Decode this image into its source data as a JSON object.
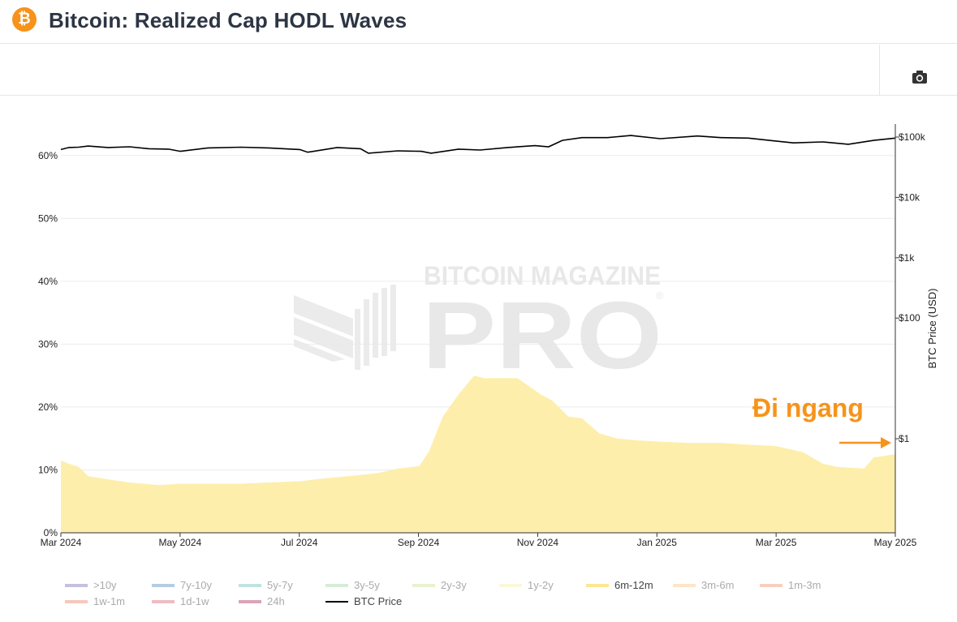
{
  "header": {
    "title": "Bitcoin: Realized Cap HODL Waves",
    "logo_glyph": "₿"
  },
  "toolbar": {
    "camera_icon": "camera-icon"
  },
  "chart_data": {
    "type": "area",
    "title": "Bitcoin: Realized Cap HODL Waves",
    "x_tick_labels": [
      "Mar 2024",
      "May 2024",
      "Jul 2024",
      "Sep 2024",
      "Nov 2024",
      "Jan 2025",
      "Mar 2025",
      "May 2025"
    ],
    "x_range": [
      "2024-03-01",
      "2025-05-01"
    ],
    "y_left": {
      "range": [
        0,
        65
      ],
      "unit": "%",
      "ticks": [
        "0%",
        "10%",
        "20%",
        "30%",
        "40%",
        "50%",
        "60%"
      ]
    },
    "y_right": {
      "label": "BTC Price (USD)",
      "scale": "log",
      "ticks": [
        {
          "label": "$1",
          "value": 1
        },
        {
          "label": "$100",
          "value": 100
        },
        {
          "label": "$1k",
          "value": 1000
        },
        {
          "label": "$10k",
          "value": 10000
        },
        {
          "label": "$100k",
          "value": 100000
        }
      ]
    },
    "grid": true,
    "legend_position": "bottom",
    "series": [
      {
        "name": "6m-12m",
        "type": "area",
        "color": "#fdeeab",
        "x": [
          "2024-03-01",
          "2024-03-05",
          "2024-03-10",
          "2024-03-15",
          "2024-03-25",
          "2024-04-05",
          "2024-04-20",
          "2024-05-01",
          "2024-05-15",
          "2024-06-01",
          "2024-06-15",
          "2024-07-01",
          "2024-07-15",
          "2024-08-01",
          "2024-08-10",
          "2024-08-20",
          "2024-08-31",
          "2024-09-05",
          "2024-09-12",
          "2024-09-20",
          "2024-09-28",
          "2024-10-03",
          "2024-10-10",
          "2024-10-20",
          "2024-11-01",
          "2024-11-07",
          "2024-11-15",
          "2024-11-22",
          "2024-12-01",
          "2024-12-10",
          "2024-12-20",
          "2025-01-01",
          "2025-01-15",
          "2025-02-01",
          "2025-02-15",
          "2025-03-01",
          "2025-03-15",
          "2025-03-25",
          "2025-04-01",
          "2025-04-15",
          "2025-04-20",
          "2025-05-01"
        ],
        "values": [
          11.5,
          11.0,
          10.5,
          9.0,
          8.5,
          8.0,
          7.6,
          7.8,
          7.8,
          7.8,
          8.0,
          8.2,
          8.7,
          9.2,
          9.5,
          10.2,
          10.6,
          13.0,
          18.5,
          22.0,
          25.0,
          24.6,
          24.6,
          24.6,
          22.0,
          21.0,
          18.5,
          18.2,
          15.8,
          15.0,
          14.7,
          14.5,
          14.3,
          14.3,
          14.0,
          13.8,
          12.8,
          11.0,
          10.5,
          10.2,
          12.0,
          12.5
        ]
      },
      {
        "name": "BTC Price",
        "type": "line",
        "color": "#000000",
        "x": [
          "2024-03-01",
          "2024-03-05",
          "2024-03-10",
          "2024-03-15",
          "2024-03-25",
          "2024-04-05",
          "2024-04-15",
          "2024-04-25",
          "2024-05-01",
          "2024-05-15",
          "2024-06-01",
          "2024-06-15",
          "2024-07-01",
          "2024-07-05",
          "2024-07-20",
          "2024-08-01",
          "2024-08-05",
          "2024-08-20",
          "2024-09-01",
          "2024-09-06",
          "2024-09-20",
          "2024-10-01",
          "2024-10-15",
          "2024-10-29",
          "2024-11-05",
          "2024-11-12",
          "2024-11-22",
          "2024-12-05",
          "2024-12-17",
          "2025-01-01",
          "2025-01-20",
          "2025-02-01",
          "2025-02-15",
          "2025-03-01",
          "2025-03-10",
          "2025-03-25",
          "2025-04-07",
          "2025-04-20",
          "2025-05-01"
        ],
        "values": [
          62000,
          67000,
          68000,
          71000,
          67000,
          69000,
          64000,
          63000,
          58000,
          66000,
          68000,
          66000,
          62000,
          56000,
          67000,
          64000,
          54000,
          59000,
          58000,
          54000,
          63000,
          61000,
          67000,
          72000,
          69000,
          88000,
          98000,
          98000,
          106000,
          94000,
          104000,
          98000,
          96000,
          86000,
          80000,
          83000,
          76000,
          88000,
          96000
        ]
      }
    ],
    "annotation": {
      "text": "Đi ngang",
      "color": "#f7931a"
    }
  },
  "legend": [
    {
      "label": ">10y",
      "color": "#c4c1dc",
      "faded": true
    },
    {
      "label": "7y-10y",
      "color": "#b5cce4",
      "faded": true
    },
    {
      "label": "5y-7y",
      "color": "#bfe3e1",
      "faded": true
    },
    {
      "label": "3y-5y",
      "color": "#d5ecd9",
      "faded": true
    },
    {
      "label": "2y-3y",
      "color": "#e9f2cf",
      "faded": true
    },
    {
      "label": "1y-2y",
      "color": "#fbf8da",
      "faded": true
    },
    {
      "label": "6m-12m",
      "color": "#fbe693",
      "faded": false
    },
    {
      "label": "3m-6m",
      "color": "#fce6c8",
      "faded": true
    },
    {
      "label": "1m-3m",
      "color": "#f7d0bd",
      "faded": true
    },
    {
      "label": "1w-1m",
      "color": "#f6c8bd",
      "faded": true
    },
    {
      "label": "1d-1w",
      "color": "#efbcc3",
      "faded": true
    },
    {
      "label": "24h",
      "color": "#dba2b8",
      "faded": true
    },
    {
      "label": "BTC Price",
      "color": "#000000",
      "faded": false
    }
  ],
  "watermark": {
    "line1": "BITCOIN MAGAZINE",
    "line2": "PRO",
    "mark": "®"
  }
}
